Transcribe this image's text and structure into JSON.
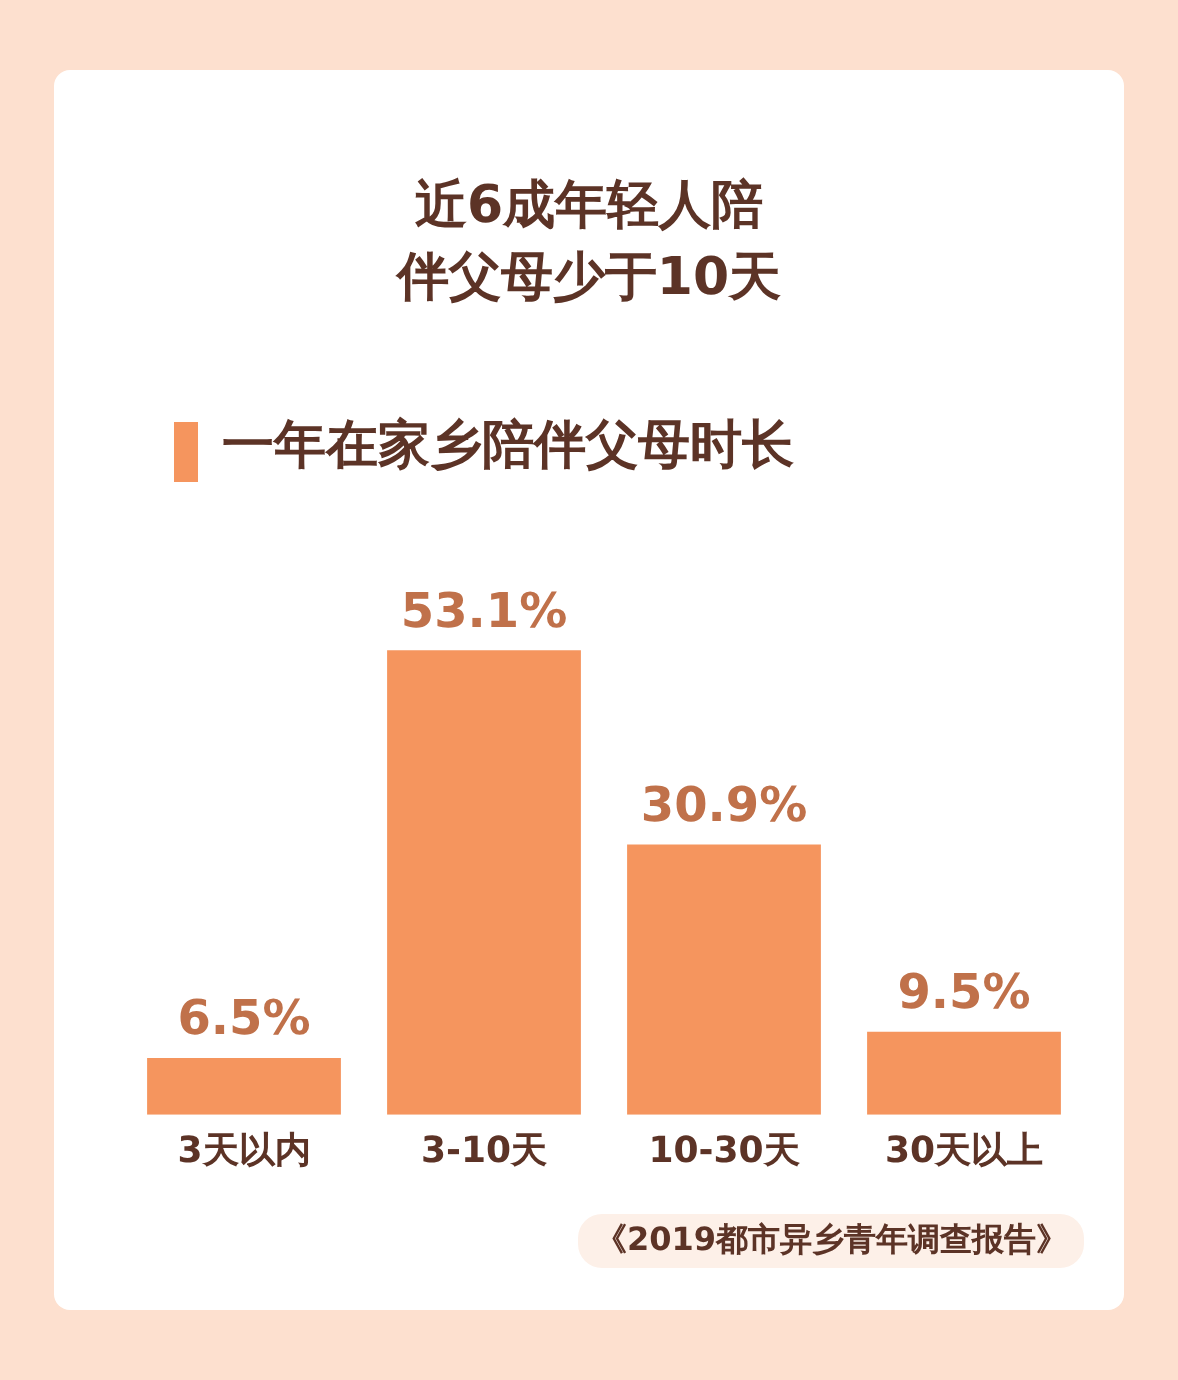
{
  "chart_data": {
    "type": "bar",
    "title": "近6成年轻人陪伴父母少于10天",
    "subtitle": "一年在家乡陪伴父母时长",
    "categories": [
      "3天以内",
      "3-10天",
      "10-30天",
      "30天以上"
    ],
    "values": [
      6.5,
      53.1,
      30.9,
      9.5
    ],
    "value_labels": [
      "6.5%",
      "53.1%",
      "30.9%",
      "9.5%"
    ],
    "color": "#f5955e",
    "grid": false,
    "legend": false,
    "annotations": [
      "《2019都市异乡青年调查报告》"
    ]
  }
}
